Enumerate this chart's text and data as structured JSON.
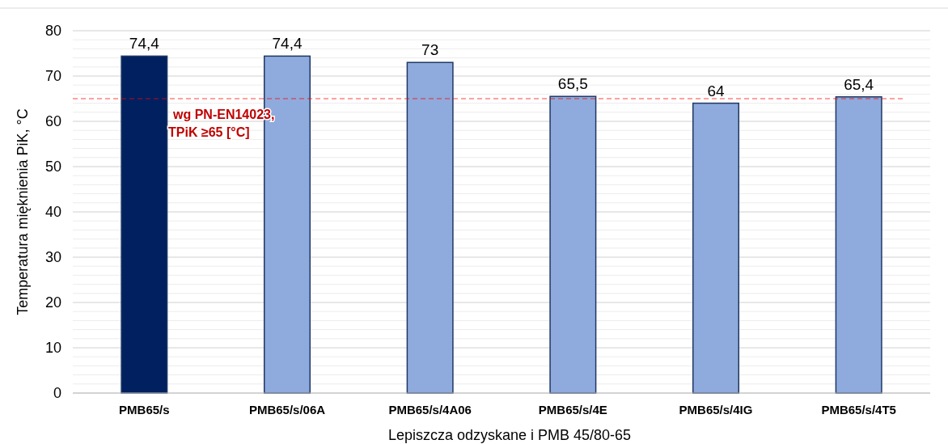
{
  "chart_data": {
    "type": "bar",
    "xlabel": "Lepiszcza odzyskane i PMB 45/80-65",
    "ylabel": "Temperatura mięknienia PiK, °C",
    "categories": [
      "PMB65/s",
      "PMB65/s/06A",
      "PMB65/s/4A06",
      "PMB65/s/4E",
      "PMB65/s/4IG",
      "PMB65/s/4T5"
    ],
    "values": [
      74.4,
      74.4,
      73,
      65.5,
      64,
      65.4
    ],
    "colors": [
      "#002060",
      "#8faadc",
      "#8faadc",
      "#8faadc",
      "#8faadc",
      "#8faadc"
    ],
    "value_labels": [
      "74,4",
      "74,4",
      "73",
      "65,5",
      "64",
      "65,4"
    ],
    "ylim": [
      0,
      80
    ],
    "yticks": [
      0,
      {
        "value": 2,
        "label": null
      },
      {
        "value": 4,
        "label": null
      },
      {
        "value": 6,
        "label": null
      },
      {
        "value": 8,
        "label": null
      },
      10,
      {
        "value": 12,
        "label": null
      },
      {
        "value": 14,
        "label": null
      },
      {
        "value": 16,
        "label": null
      },
      {
        "value": 18,
        "label": null
      },
      20,
      {
        "value": 22,
        "label": null
      },
      {
        "value": 24,
        "label": null
      },
      {
        "value": 26,
        "label": null
      },
      {
        "value": 28,
        "label": null
      },
      30,
      {
        "value": 32,
        "label": null
      },
      {
        "value": 34,
        "label": null
      },
      {
        "value": 36,
        "label": null
      },
      {
        "value": 38,
        "label": null
      },
      40,
      {
        "value": 42,
        "label": null
      },
      {
        "value": 44,
        "label": null
      },
      {
        "value": 46,
        "label": null
      },
      {
        "value": 48,
        "label": null
      },
      50,
      {
        "value": 52,
        "label": null
      },
      {
        "value": 54,
        "label": null
      },
      {
        "value": 56,
        "label": null
      },
      {
        "value": 58,
        "label": null
      },
      60,
      {
        "value": 62,
        "label": null
      },
      {
        "value": 64,
        "label": null
      },
      {
        "value": 66,
        "label": null
      },
      {
        "value": 68,
        "label": null
      },
      70,
      {
        "value": 72,
        "label": null
      },
      {
        "value": 74,
        "label": null
      },
      {
        "value": 76,
        "label": null
      },
      {
        "value": 78,
        "label": null
      },
      80
    ],
    "grid": "y",
    "ref_lines": [
      {
        "axis": "y",
        "value": 65,
        "label": "wg PN-EN14023, TPiK ≥65 [°C]",
        "color": "#ff0000",
        "line_style": "dashed"
      }
    ]
  }
}
